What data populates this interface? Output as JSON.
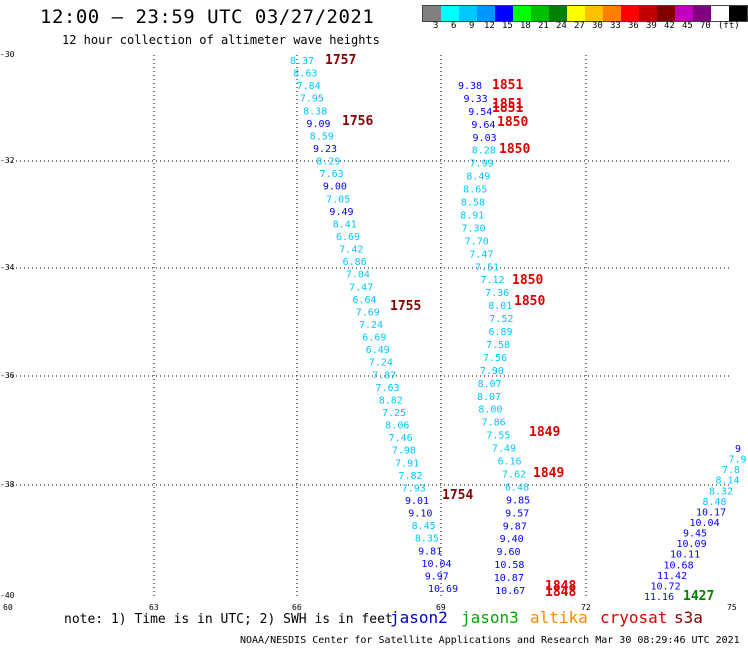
{
  "title": "12:00 – 23:59 UTC 03/27/2021",
  "subtitle": "12 hour collection of altimeter wave heights",
  "colorbar": {
    "colors": [
      "#808080",
      "#00ffff",
      "#00c8ff",
      "#0096ff",
      "#0000ff",
      "#00ff00",
      "#00c000",
      "#008000",
      "#ffff00",
      "#ffc000",
      "#ff8000",
      "#ff0000",
      "#c00000",
      "#800000",
      "#c000c0",
      "#800080",
      "#ffffff",
      "#000000"
    ],
    "labels": [
      "3",
      "6",
      "9",
      "12",
      "15",
      "18",
      "21",
      "24",
      "27",
      "30",
      "33",
      "36",
      "39",
      "42",
      "45",
      "70",
      "(ft)"
    ]
  },
  "lat_labels": [
    "-30",
    "-32",
    "-34",
    "-36",
    "-38",
    "-40"
  ],
  "lon_labels": [
    "60",
    "63",
    "66",
    "69",
    "72",
    "75"
  ],
  "note": "note:  1) Time is in UTC; 2) SWH is in feet",
  "satellites": [
    {
      "name": "jason2",
      "color": "#0000cc"
    },
    {
      "name": "jason3",
      "color": "#00aa00"
    },
    {
      "name": "altika",
      "color": "#ff8800"
    },
    {
      "name": "cryosat",
      "color": "#dd0000"
    },
    {
      "name": "s3a",
      "color": "#880000"
    }
  ],
  "footer": "NOAA/NESDIS Center for Satellite Applications and Research   Mar 30 08:29:46 UTC 2021",
  "track_a": [
    "8.37",
    "8.63",
    "7.84",
    "7.95",
    "8.38",
    "9.09",
    "8.59",
    "9.23",
    "8.29",
    "7.63",
    "9.00",
    "7.05",
    "9.49",
    "8.41",
    "6.69",
    "7.42",
    "6.86",
    "7.04",
    "7.47",
    "6.64",
    "7.69",
    "7.24",
    "6.69",
    "6.49",
    "7.24",
    "7.87",
    "7.63",
    "8.82",
    "7.25",
    "8.06",
    "7.46",
    "7.98",
    "7.91",
    "7.82",
    "7.93",
    "9.01",
    "9.10",
    "8.45",
    "8.35",
    "9.81",
    "10.04",
    "9.97",
    "10.69"
  ],
  "track_a_times": [
    "1757",
    "1756",
    "1755",
    "1754"
  ],
  "track_b": [
    "9.38",
    "9.33",
    "9.54",
    "9.64",
    "9.03",
    "8.28",
    "7.99",
    "8.49",
    "8.65",
    "8.58",
    "8.91",
    "7.30",
    "7.70",
    "7.47",
    "7.51",
    "7.12",
    "7.36",
    "8.01",
    "7.52",
    "6.89",
    "7.58",
    "7.56",
    "7.90",
    "8.07",
    "8.07",
    "8.00",
    "7.86",
    "7.55",
    "7.49",
    "6.16",
    "7.62",
    "6.48",
    "9.85",
    "9.57",
    "9.87",
    "9.40",
    "9.60",
    "10.58",
    "10.87",
    "10.67"
  ],
  "track_b_times": [
    "1851",
    "1851",
    "1851",
    "1850",
    "1850",
    "1850",
    "1850",
    "1849",
    "1849",
    "1848",
    "1848"
  ],
  "track_c": [
    "9",
    "7.9",
    "7.8",
    "8.14",
    "8.32",
    "8.48",
    "10.17",
    "10.04",
    "9.45",
    "10.09",
    "10.11",
    "10.68",
    "11.42",
    "10.72",
    "11.16"
  ],
  "track_c_times": [
    "1427"
  ]
}
